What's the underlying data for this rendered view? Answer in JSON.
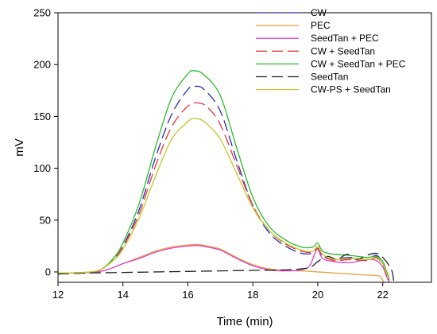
{
  "chart_data": {
    "type": "line",
    "xlabel": "Time (min)",
    "ylabel": "mV",
    "xlim": [
      12,
      23.5
    ],
    "ylim": [
      -10,
      250
    ],
    "xticks": [
      12,
      14,
      16,
      18,
      20,
      22
    ],
    "yticks": [
      0,
      50,
      100,
      150,
      200,
      250
    ],
    "legend_position": "top-right",
    "series": [
      {
        "name": "CW",
        "color": "#2b2bb8",
        "dash": "dashed",
        "points": [
          [
            12,
            -1
          ],
          [
            12.8,
            -0.5
          ],
          [
            13.3,
            2
          ],
          [
            13.7,
            12
          ],
          [
            14,
            25
          ],
          [
            14.5,
            60
          ],
          [
            15,
            110
          ],
          [
            15.5,
            152
          ],
          [
            16,
            176
          ],
          [
            16.2,
            179
          ],
          [
            16.5,
            176
          ],
          [
            17,
            155
          ],
          [
            17.5,
            108
          ],
          [
            18,
            64
          ],
          [
            18.5,
            38
          ],
          [
            19,
            25
          ],
          [
            19.5,
            18
          ],
          [
            19.85,
            18
          ],
          [
            20,
            22
          ],
          [
            20.15,
            15
          ],
          [
            20.5,
            12
          ],
          [
            21,
            14
          ],
          [
            21.5,
            12
          ],
          [
            21.8,
            16
          ],
          [
            22,
            9
          ],
          [
            22.1,
            0
          ],
          [
            22.2,
            -8
          ]
        ]
      },
      {
        "name": "PEC",
        "color": "#e8a13a",
        "dash": "solid",
        "points": [
          [
            12,
            -1
          ],
          [
            13,
            -0.5
          ],
          [
            13.5,
            2
          ],
          [
            14,
            8
          ],
          [
            14.5,
            14
          ],
          [
            15,
            20
          ],
          [
            15.5,
            24
          ],
          [
            16,
            26
          ],
          [
            16.3,
            26.5
          ],
          [
            16.6,
            25
          ],
          [
            17,
            22
          ],
          [
            17.5,
            14
          ],
          [
            18,
            7
          ],
          [
            18.5,
            3
          ],
          [
            19,
            1.5
          ],
          [
            19.5,
            1
          ],
          [
            19.8,
            0.5
          ],
          [
            20,
            0
          ],
          [
            20.5,
            -1
          ],
          [
            21,
            -2
          ],
          [
            21.5,
            -3
          ],
          [
            21.9,
            -4
          ],
          [
            22,
            -8
          ],
          [
            22.1,
            -12
          ]
        ]
      },
      {
        "name": "SeedTan + PEC",
        "color": "#e040d0",
        "dash": "solid",
        "points": [
          [
            12,
            -1
          ],
          [
            13,
            -0.5
          ],
          [
            13.5,
            2
          ],
          [
            14,
            8
          ],
          [
            14.5,
            13
          ],
          [
            15,
            19
          ],
          [
            15.5,
            23
          ],
          [
            16,
            25
          ],
          [
            16.3,
            25.5
          ],
          [
            16.6,
            24
          ],
          [
            17,
            21
          ],
          [
            17.5,
            13
          ],
          [
            18,
            6
          ],
          [
            18.5,
            2
          ],
          [
            19,
            1
          ],
          [
            19.5,
            2
          ],
          [
            19.75,
            6
          ],
          [
            19.9,
            17
          ],
          [
            20,
            22
          ],
          [
            20.15,
            13
          ],
          [
            20.5,
            10
          ],
          [
            21,
            9
          ],
          [
            21.5,
            12
          ],
          [
            21.8,
            11
          ],
          [
            22,
            5
          ],
          [
            22.1,
            -3
          ],
          [
            22.2,
            -10
          ]
        ]
      },
      {
        "name": "CW + SeedTan",
        "color": "#e03b3b",
        "dash": "dashed",
        "points": [
          [
            12,
            -1
          ],
          [
            12.8,
            -0.5
          ],
          [
            13.3,
            2
          ],
          [
            13.7,
            12
          ],
          [
            14,
            24
          ],
          [
            14.5,
            56
          ],
          [
            15,
            102
          ],
          [
            15.5,
            140
          ],
          [
            16,
            160
          ],
          [
            16.3,
            163
          ],
          [
            16.6,
            159
          ],
          [
            17,
            142
          ],
          [
            17.5,
            103
          ],
          [
            18,
            64
          ],
          [
            18.5,
            40
          ],
          [
            19,
            27
          ],
          [
            19.5,
            20
          ],
          [
            19.85,
            19
          ],
          [
            20,
            23
          ],
          [
            20.15,
            16
          ],
          [
            20.5,
            11
          ],
          [
            21,
            12
          ],
          [
            21.5,
            11
          ],
          [
            21.8,
            14
          ],
          [
            22,
            7
          ],
          [
            22.1,
            -1
          ],
          [
            22.2,
            -8
          ]
        ]
      },
      {
        "name": "CW + SeedTan + PEC",
        "color": "#2dbb2d",
        "dash": "solid",
        "points": [
          [
            12,
            -1
          ],
          [
            12.8,
            -0.5
          ],
          [
            13.3,
            2
          ],
          [
            13.7,
            13
          ],
          [
            14,
            28
          ],
          [
            14.5,
            66
          ],
          [
            15,
            120
          ],
          [
            15.5,
            168
          ],
          [
            16,
            191
          ],
          [
            16.2,
            194
          ],
          [
            16.5,
            190
          ],
          [
            17,
            170
          ],
          [
            17.5,
            120
          ],
          [
            18,
            72
          ],
          [
            18.5,
            44
          ],
          [
            19,
            31
          ],
          [
            19.5,
            24
          ],
          [
            19.85,
            24
          ],
          [
            20,
            28
          ],
          [
            20.15,
            20
          ],
          [
            20.5,
            17
          ],
          [
            21,
            16
          ],
          [
            21.5,
            14
          ],
          [
            21.8,
            15
          ],
          [
            22,
            10
          ],
          [
            22.1,
            2
          ],
          [
            22.2,
            -6
          ]
        ]
      },
      {
        "name": "SeedTan",
        "color": "#222222",
        "dash": "dashed",
        "points": [
          [
            12,
            -2
          ],
          [
            13,
            -1
          ],
          [
            14,
            -0.5
          ],
          [
            15,
            0
          ],
          [
            16,
            0.5
          ],
          [
            17,
            1
          ],
          [
            18,
            1.5
          ],
          [
            19,
            2
          ],
          [
            19.5,
            3
          ],
          [
            19.8,
            5
          ],
          [
            20,
            10
          ],
          [
            20.3,
            15
          ],
          [
            20.6,
            12
          ],
          [
            20.9,
            17
          ],
          [
            21.2,
            12
          ],
          [
            21.5,
            16
          ],
          [
            21.8,
            18
          ],
          [
            22,
            14
          ],
          [
            22.2,
            6
          ],
          [
            22.3,
            -1
          ],
          [
            22.35,
            -12
          ]
        ]
      },
      {
        "name": "CW-PS + SeedTan",
        "color": "#c6c62a",
        "dash": "solid",
        "points": [
          [
            12,
            -1
          ],
          [
            12.8,
            -0.5
          ],
          [
            13.3,
            2
          ],
          [
            13.7,
            11
          ],
          [
            14,
            22
          ],
          [
            14.5,
            52
          ],
          [
            15,
            92
          ],
          [
            15.5,
            128
          ],
          [
            16,
            145
          ],
          [
            16.2,
            148
          ],
          [
            16.5,
            145
          ],
          [
            17,
            128
          ],
          [
            17.5,
            95
          ],
          [
            18,
            62
          ],
          [
            18.5,
            40
          ],
          [
            19,
            28
          ],
          [
            19.5,
            21
          ],
          [
            19.85,
            20
          ],
          [
            20,
            25
          ],
          [
            20.15,
            17
          ],
          [
            20.5,
            12
          ],
          [
            21,
            13
          ],
          [
            21.5,
            12
          ],
          [
            21.8,
            13
          ],
          [
            22,
            8
          ],
          [
            22.1,
            0
          ],
          [
            22.2,
            -7
          ]
        ]
      }
    ]
  }
}
